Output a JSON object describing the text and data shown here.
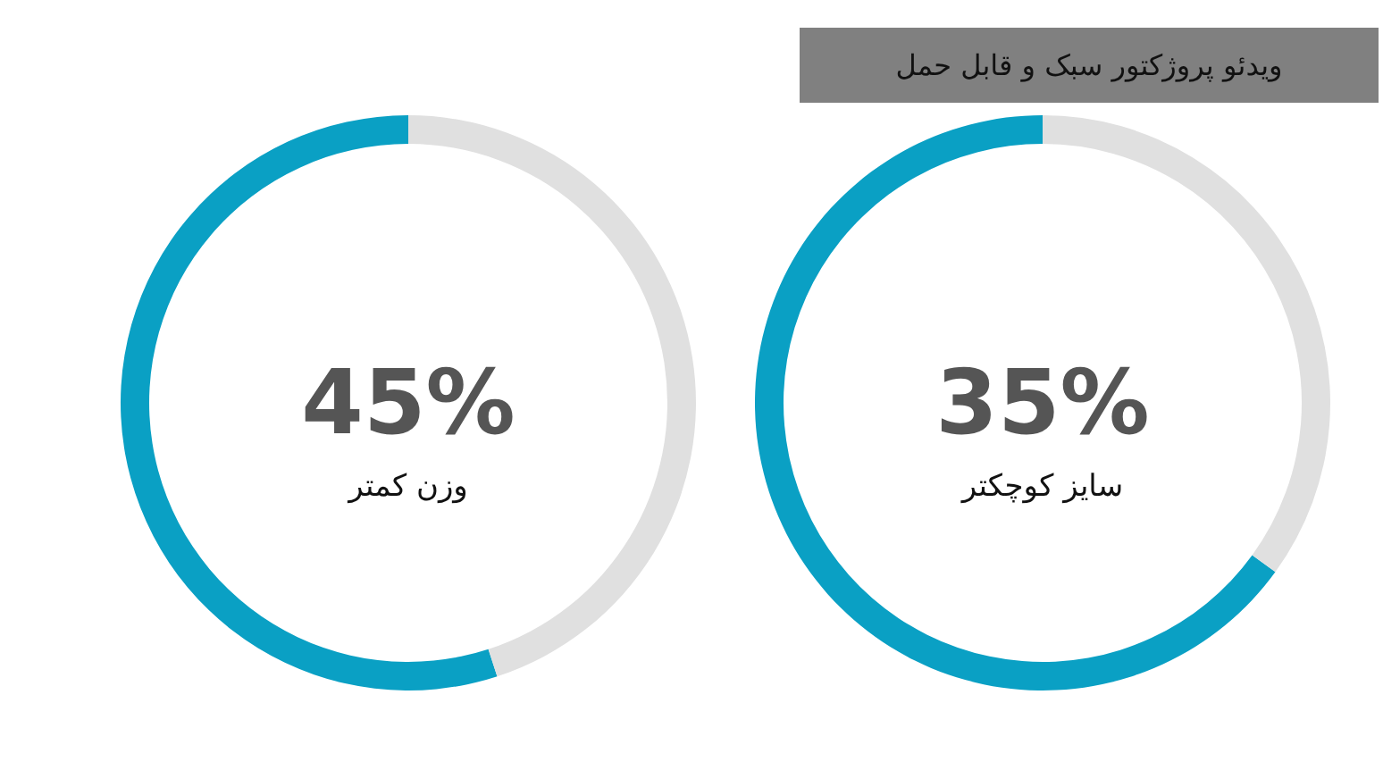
{
  "chart_data": [
    {
      "type": "donut",
      "categories": [
        null,
        null
      ],
      "values": [
        55,
        45
      ],
      "colors": [
        "#0aa0c4",
        "#e0e0e0"
      ],
      "annotations": [
        "45%",
        "وزن کمتر"
      ]
    },
    {
      "type": "donut",
      "title": "ویدئو پروژکتور سبک و قابل حمل",
      "categories": [
        null,
        null
      ],
      "values": [
        65,
        35
      ],
      "colors": [
        "#0aa0c4",
        "#e0e0e0"
      ],
      "annotations": [
        "35%",
        "سایز کوچکتر"
      ]
    }
  ]
}
